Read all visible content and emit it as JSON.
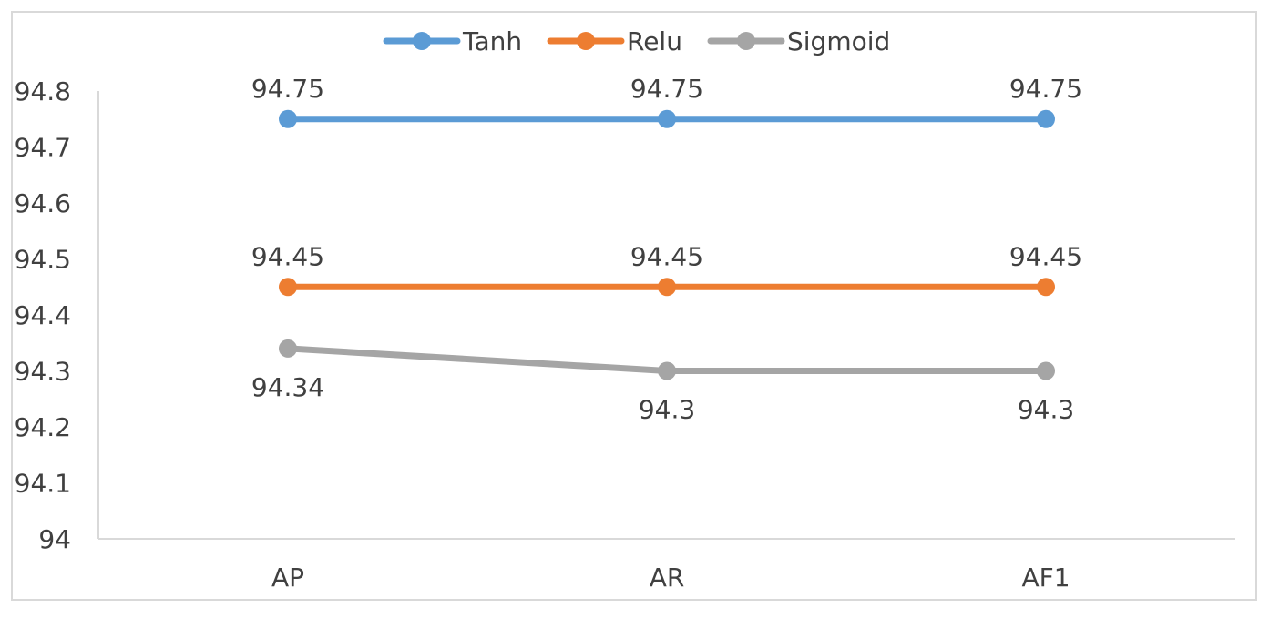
{
  "chart_data": {
    "type": "line",
    "categories": [
      "AP",
      "AR",
      "AF1"
    ],
    "series": [
      {
        "name": "Tanh",
        "values": [
          94.75,
          94.75,
          94.75
        ],
        "color": "#5b9bd5",
        "labels": [
          "94.75",
          "94.75",
          "94.75"
        ]
      },
      {
        "name": "Relu",
        "values": [
          94.45,
          94.45,
          94.45
        ],
        "color": "#ed7d31",
        "labels": [
          "94.45",
          "94.45",
          "94.45"
        ]
      },
      {
        "name": "Sigmoid",
        "values": [
          94.34,
          94.3,
          94.3
        ],
        "color": "#a5a5a5",
        "labels": [
          "94.34",
          "94.3",
          "94.3"
        ]
      }
    ],
    "ylim": [
      94,
      94.8
    ],
    "yticks": [
      "94",
      "94.1",
      "94.2",
      "94.3",
      "94.4",
      "94.5",
      "94.6",
      "94.7",
      "94.8"
    ],
    "grid": false,
    "legend": "top-center",
    "label_position": {
      "Tanh": "above",
      "Relu": "above",
      "Sigmoid": "below"
    },
    "title": "",
    "xlabel": "",
    "ylabel": ""
  }
}
